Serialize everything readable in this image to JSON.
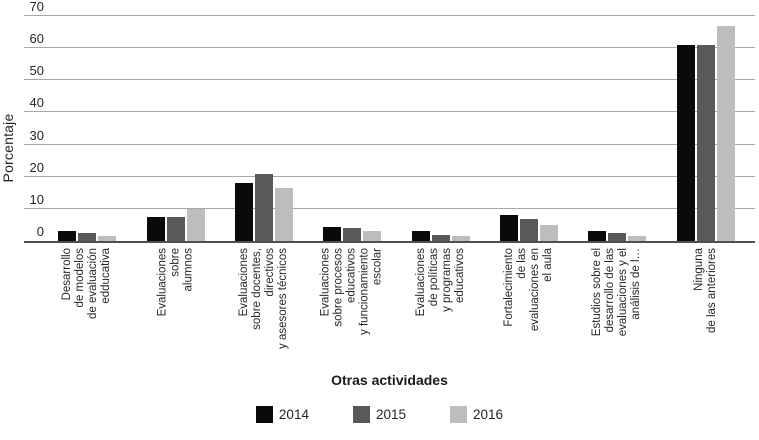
{
  "chart_data": {
    "type": "bar",
    "title": "",
    "xlabel": "Otras actividades",
    "ylabel": "Porcentaje",
    "ylim": [
      0,
      70
    ],
    "yticks": [
      0,
      10,
      20,
      30,
      40,
      50,
      60,
      70
    ],
    "grid": true,
    "legend_position": "bottom",
    "categories": [
      "Desarrollo\nde modelos\nde evaluación\nedducativa",
      "Evaluaciones\nsobre\nalumnos",
      "Evaluaciones\nsobre docentes,\ndirectivos\ny asesores técnicos",
      "Evaluaciones\nsobre procesos\neducativos\ny funcionamiento\nescolar",
      "Evaluaciones\nde políticas\ny programas\neducativos",
      "Fortalecimiento\nde las\nevaluaciones en\nel aula",
      "Estudios sobre el\ndesarrollo de las\nevaluaciones y el\nanálisis de l…",
      "Ninguna\nde las anteriores"
    ],
    "series": [
      {
        "name": "2014",
        "color": "#0a0a0a",
        "values": [
          3,
          7.5,
          18,
          4.5,
          3,
          8,
          3,
          61
        ]
      },
      {
        "name": "2015",
        "color": "#595959",
        "values": [
          2.5,
          7.5,
          21,
          4,
          2,
          7,
          2.5,
          61
        ]
      },
      {
        "name": "2016",
        "color": "#bdbdbd",
        "values": [
          1.5,
          10,
          16.5,
          3,
          1.5,
          5,
          1.5,
          67
        ]
      }
    ]
  },
  "colors": {
    "gridline": "#a8a8a8",
    "axis": "#4f4f4f",
    "text": "#262626",
    "background": "#ffffff"
  }
}
